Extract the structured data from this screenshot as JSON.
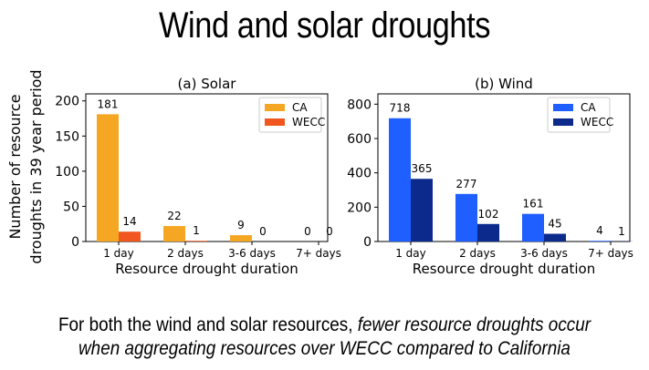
{
  "slide": {
    "title": "Wind and solar droughts",
    "caption_line1_plain": "For both the wind and solar resources, ",
    "caption_line1_italic": "fewer resource droughts occur",
    "caption_line2_italic": "when aggregating resources over WECC compared to California"
  },
  "shared_ylabel": [
    "Number of resource",
    "droughts in 39 year period"
  ],
  "chart_data": [
    {
      "type": "bar",
      "title": "(a) Solar",
      "xlabel": "Resource drought duration",
      "ylabel": "Number of resource droughts in 39 year period",
      "categories": [
        "1 day",
        "2 days",
        "3-6 days",
        "7+ days"
      ],
      "series": [
        {
          "name": "CA",
          "values": [
            181,
            22,
            9,
            0
          ],
          "color": "#f5a623"
        },
        {
          "name": "WECC",
          "values": [
            14,
            1,
            0,
            0
          ],
          "color": "#f0561e"
        }
      ],
      "ylim": [
        0,
        210
      ],
      "yticks": [
        0,
        50,
        100,
        150,
        200
      ],
      "grid": false,
      "legend": "top-right"
    },
    {
      "type": "bar",
      "title": "(b) Wind",
      "xlabel": "Resource drought duration",
      "ylabel": "",
      "categories": [
        "1 day",
        "2 days",
        "3-6 days",
        "7+ days"
      ],
      "series": [
        {
          "name": "CA",
          "values": [
            718,
            277,
            161,
            4
          ],
          "color": "#1f5eff"
        },
        {
          "name": "WECC",
          "values": [
            365,
            102,
            45,
            1
          ],
          "color": "#0b2a8c"
        }
      ],
      "ylim": [
        0,
        860
      ],
      "yticks": [
        0,
        200,
        400,
        600,
        800
      ],
      "grid": false,
      "legend": "top-right"
    }
  ]
}
